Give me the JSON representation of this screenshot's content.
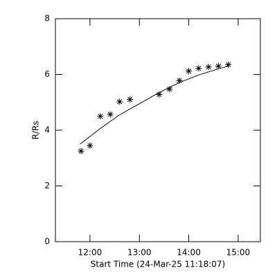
{
  "chart_data": {
    "type": "scatter",
    "xlabel": "Start Time (24-Mar-25 11:18:07)",
    "ylabel": "R/Rs",
    "xlim": [
      11.3,
      15.45
    ],
    "ylim": [
      0,
      8
    ],
    "xticks": [
      {
        "value": 12,
        "label": "12:00"
      },
      {
        "value": 13,
        "label": "13:00"
      },
      {
        "value": 14,
        "label": "14:00"
      },
      {
        "value": 15,
        "label": "15:00"
      }
    ],
    "yticks": [
      0,
      2,
      4,
      6,
      8
    ],
    "series": [
      {
        "color": "#000000",
        "marker": "asterisk",
        "x": [
          11.82,
          12.0,
          12.21,
          12.41,
          12.6,
          12.81,
          13.4,
          13.61,
          13.81,
          14.0,
          14.2,
          14.4,
          14.6,
          14.8
        ],
        "values": [
          3.25,
          3.45,
          4.5,
          4.57,
          5.02,
          5.1,
          5.28,
          5.47,
          5.78,
          6.12,
          6.22,
          6.27,
          6.3,
          6.35
        ]
      },
      {
        "color": "#000000",
        "marker": "line",
        "x": [
          11.8,
          12.2,
          12.6,
          13.0,
          13.4,
          13.8,
          14.2,
          14.6,
          14.8
        ],
        "values": [
          3.5,
          4.05,
          4.55,
          4.95,
          5.35,
          5.7,
          5.98,
          6.2,
          6.3
        ]
      }
    ]
  }
}
